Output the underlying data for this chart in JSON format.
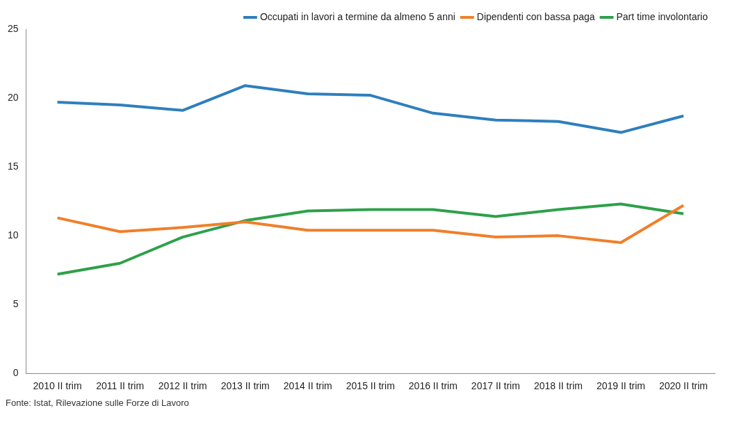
{
  "chart_data": {
    "type": "line",
    "categories": [
      "2010 II trim",
      "2011 II trim",
      "2012 II trim",
      "2013 II trim",
      "2014 II trim",
      "2015 II trim",
      "2016 II trim",
      "2017 II trim",
      "2018 II trim",
      "2019 II trim",
      "2020 II trim"
    ],
    "series": [
      {
        "name": "Occupati in lavori a termine da almeno 5 anni",
        "color": "#2e7fbd",
        "values": [
          19.7,
          19.5,
          19.1,
          20.9,
          20.3,
          20.2,
          18.9,
          18.4,
          18.3,
          17.5,
          18.7
        ]
      },
      {
        "name": "Dipendenti con bassa paga",
        "color": "#f07f2a",
        "values": [
          11.3,
          10.3,
          10.6,
          11.0,
          10.4,
          10.4,
          10.4,
          9.9,
          10.0,
          9.5,
          12.2
        ]
      },
      {
        "name": "Part time involontario",
        "color": "#2ea04a",
        "values": [
          7.2,
          8.0,
          9.9,
          11.1,
          11.8,
          11.9,
          11.9,
          11.4,
          11.9,
          12.3,
          11.6
        ]
      }
    ],
    "ylim": [
      0,
      25
    ],
    "yticks": [
      0,
      5,
      10,
      15,
      20,
      25
    ],
    "grid": false,
    "legend": "top right",
    "marker": "none",
    "line_style": "solid",
    "annotations": [
      "Fonte: Istat, Rilevazione sulle Forze di Lavoro"
    ]
  }
}
